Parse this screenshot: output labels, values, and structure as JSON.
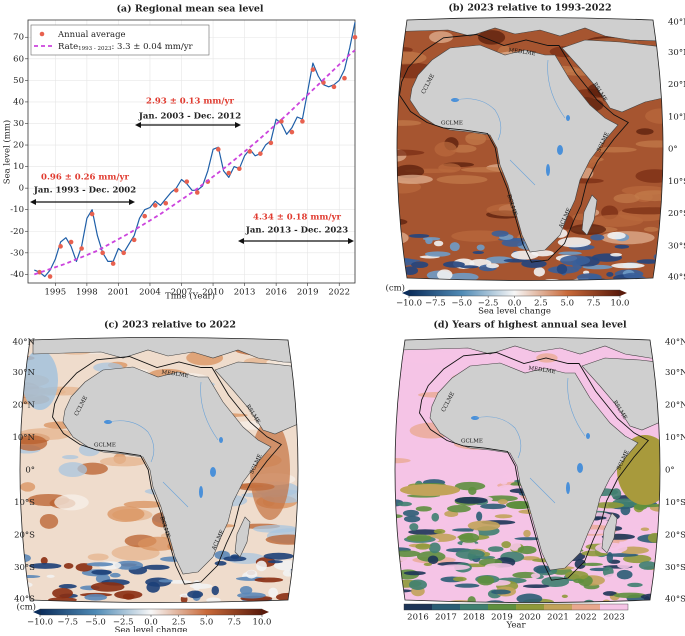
{
  "chart_data": [
    {
      "type": "line",
      "title": "(a) Regional mean sea level",
      "xlabel": "Time (Year)",
      "ylabel": "Sea level (mm)",
      "xlim": [
        1992.4,
        2023.5
      ],
      "ylim": [
        -44,
        78
      ],
      "xticks": [
        1995,
        1998,
        2001,
        2004,
        2007,
        2010,
        2013,
        2016,
        2019,
        2022
      ],
      "yticks": [
        -40,
        -30,
        -20,
        -10,
        0,
        10,
        20,
        30,
        40,
        50,
        60,
        70
      ],
      "grid": true,
      "legend": "upper left",
      "series": [
        {
          "color": "#1f5fa8",
          "linestyle": "-",
          "x": [
            1993.0,
            1993.5,
            1994.0,
            1994.5,
            1995.0,
            1995.5,
            1996.0,
            1996.5,
            1997.0,
            1997.5,
            1998.0,
            1998.5,
            1999.0,
            1999.5,
            2000.0,
            2000.5,
            2001.0,
            2001.5,
            2002.0,
            2002.5,
            2003.0,
            2003.5,
            2004.0,
            2004.5,
            2005.0,
            2005.5,
            2006.0,
            2006.5,
            2007.0,
            2007.5,
            2008.0,
            2008.5,
            2009.0,
            2009.5,
            2010.0,
            2010.5,
            2011.0,
            2011.5,
            2012.0,
            2012.5,
            2013.0,
            2013.5,
            2014.0,
            2014.5,
            2015.0,
            2015.5,
            2016.0,
            2016.5,
            2017.0,
            2017.5,
            2018.0,
            2018.5,
            2019.0,
            2019.5,
            2020.0,
            2020.5,
            2021.0,
            2021.5,
            2022.0,
            2022.5,
            2023.0,
            2023.5
          ],
          "values": [
            -38,
            -39,
            -41,
            -38,
            -33,
            -25,
            -23,
            -27,
            -34,
            -27,
            -14,
            -10,
            -22,
            -30,
            -34,
            -34,
            -28,
            -30,
            -26,
            -22,
            -14,
            -10,
            -9,
            -6,
            -8,
            -5,
            -2,
            0,
            4,
            2,
            -1,
            -1,
            1,
            8,
            18,
            19,
            8,
            5,
            10,
            9,
            15,
            18,
            15,
            16,
            20,
            22,
            32,
            30,
            25,
            28,
            33,
            32,
            45,
            58,
            52,
            48,
            47,
            48,
            50,
            55,
            65,
            77
          ]
        },
        {
          "name": "Annual average",
          "color": "#e8614f",
          "marker": "o",
          "x": [
            1993.5,
            1994.5,
            1995.5,
            1996.5,
            1997.5,
            1998.5,
            1999.5,
            2000.5,
            2001.5,
            2002.5,
            2003.5,
            2004.5,
            2005.5,
            2006.5,
            2007.5,
            2008.5,
            2009.5,
            2010.5,
            2011.5,
            2012.5,
            2013.5,
            2014.5,
            2015.5,
            2016.5,
            2017.5,
            2018.5,
            2019.5,
            2020.5,
            2021.5,
            2022.5,
            2023.5
          ],
          "values": [
            -39,
            -41,
            -27,
            -25,
            -28,
            -12,
            -30,
            -35,
            -30,
            -24,
            -13,
            -8,
            -7,
            -1,
            3,
            -2,
            3,
            18,
            7,
            9,
            17,
            16,
            21,
            31,
            26,
            31,
            55,
            49,
            47,
            51,
            70
          ]
        },
        {
          "name": "Rate",
          "name_sub": "1993 - 2023",
          "name_suffix": ": 3.3 ± 0.04 mm/yr",
          "color": "#cc44dd",
          "linestyle": "--",
          "x": [
            1993,
            1996,
            1999,
            2002,
            2005,
            2008,
            2011,
            2014,
            2017,
            2020,
            2023,
            2023.5
          ],
          "values": [
            -40,
            -35,
            -29,
            -21,
            -12,
            -2,
            9,
            21,
            34,
            48,
            62,
            64
          ]
        }
      ],
      "annotations": [
        {
          "rate": "0.96 ± 0.26 mm/yr",
          "period": "Jan. 1993 - Dec. 2002"
        },
        {
          "rate": "2.93 ± 0.13 mm/yr",
          "period": "Jan. 2003 - Dec. 2012"
        },
        {
          "rate": "4.34 ± 0.18 mm/yr",
          "period": "Jan. 2013 - Dec. 2023"
        }
      ]
    },
    {
      "type": "map",
      "title": "(b) 2023 relative to 1993-2022",
      "lat_labels": [
        "40°N",
        "30°N",
        "20°N",
        "10°N",
        "0°",
        "10°S",
        "20°S",
        "30°S",
        "40°S"
      ],
      "regions": [
        "MEDLME",
        "CCLME",
        "RSLME",
        "GCLME",
        "SCLME",
        "BCLME",
        "ACLME"
      ],
      "colorbar": {
        "unit": "(cm)",
        "label": "Sea level change",
        "clim": [
          -10,
          10
        ],
        "ticks": [
          {
            "value": -10,
            "label": "−10.0"
          },
          {
            "value": -7.5,
            "label": "−7.5"
          },
          {
            "value": -5,
            "label": "−5.0"
          },
          {
            "value": -2.5,
            "label": "−2.5"
          },
          {
            "value": 0,
            "label": "0.0"
          },
          2.5,
          {
            "value": 5,
            "label": "5.0"
          },
          7.5,
          {
            "value": 10,
            "label": "10.0"
          }
        ]
      }
    },
    {
      "type": "map",
      "title": "(c) 2023 relative to 2022",
      "lat_labels": [
        "40°N",
        "30°N",
        "20°N",
        "10°N",
        "0°",
        "10°S",
        "20°S",
        "30°S",
        "40°S"
      ],
      "regions": [
        "MEDLME",
        "CCLME",
        "RSLME",
        "GCLME",
        "SCLME",
        "BCLME",
        "ACLME"
      ],
      "colorbar": {
        "unit": "(cm)",
        "label": "Sea level change",
        "clim": [
          -10,
          10
        ],
        "ticks": [
          {
            "value": -10,
            "label": "−10.0"
          },
          {
            "value": -7.5,
            "label": "−7.5"
          },
          {
            "value": -5,
            "label": "−5.0"
          },
          {
            "value": -2.5,
            "label": "−2.5"
          },
          {
            "value": 0,
            "label": "0.0"
          },
          2.5,
          {
            "value": 5,
            "label": "5.0"
          },
          7.5,
          {
            "value": 10,
            "label": "10.0"
          }
        ]
      }
    },
    {
      "type": "map",
      "title": "(d) Years of highest annual sea level",
      "lat_labels": [
        "40°N",
        "30°N",
        "20°N",
        "10°N",
        "0°",
        "10°S",
        "20°S",
        "30°S",
        "40°S"
      ],
      "regions": [
        "MEDLME",
        "CCLME",
        "RSLME",
        "GCLME",
        "SCLME"
      ],
      "colorbar": {
        "label": "Year",
        "categories": [
          "2016",
          "2017",
          "2018",
          "2019",
          "2020",
          "2021",
          "2022",
          "2023"
        ],
        "colors": [
          "#1d3557",
          "#2b5d74",
          "#3f7f70",
          "#5e8f3e",
          "#8f9a3a",
          "#c2a35a",
          "#e8a88e",
          "#f5c4e6"
        ]
      }
    }
  ]
}
